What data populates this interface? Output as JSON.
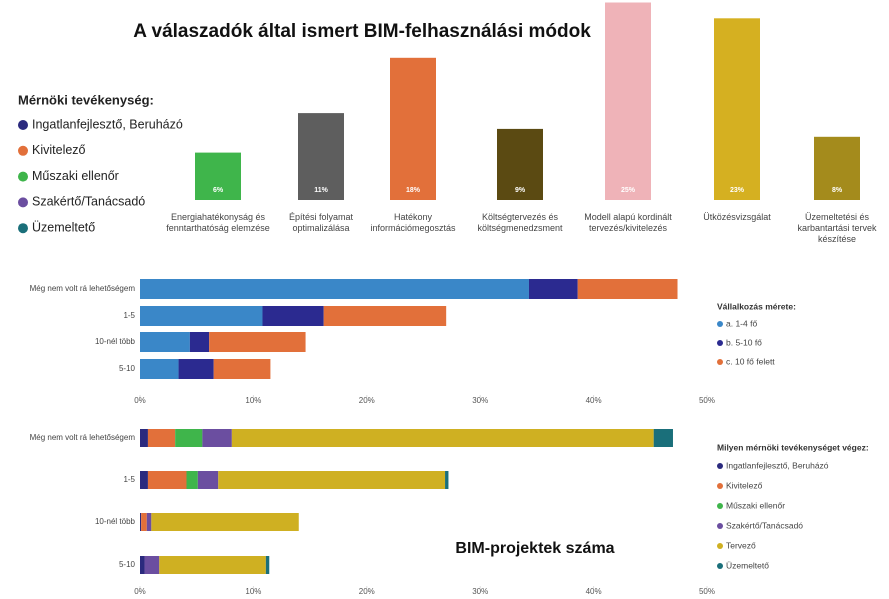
{
  "chart_data": [
    {
      "type": "bar",
      "title": "A válaszadók által ismert BIM-felhasználási módok",
      "categories": [
        "Energiahatékonyság és fenntarthatóság elemzése",
        "Építési folyamat optimalizálása",
        "Hatékony információmegosztás",
        "Költségtervezés és költségmenedzsment",
        "Modell alapú kordinált tervezés/kivitelezés",
        "Ütközésvizsgálat",
        "Üzemeltetési és karbantartási tervek készítése"
      ],
      "values": [
        6,
        11,
        18,
        9,
        25,
        23,
        8
      ],
      "value_labels": [
        "6%",
        "11%",
        "18%",
        "9%",
        "25%",
        "23%",
        "8%"
      ],
      "colors": [
        "#3fb54b",
        "#5e5e5e",
        "#e2703a",
        "#5b4a12",
        "#efb3b8",
        "#d5b021",
        "#a48b1c"
      ],
      "legend": {
        "title": "Mérnöki tevékenység:",
        "items": [
          {
            "name": "Ingatlanfejlesztő, Beruházó",
            "color": "#2b2a7e"
          },
          {
            "name": "Kivitelező",
            "color": "#e2703a"
          },
          {
            "name": "Műszaki ellenőr",
            "color": "#3fb54b"
          },
          {
            "name": "Szakértő/Tanácsadó",
            "color": "#6b4ea0"
          },
          {
            "name": "Üzemeltető",
            "color": "#1a6f7a"
          }
        ]
      }
    },
    {
      "type": "barh",
      "categories": [
        "Még nem volt rá lehetőségem",
        "1-5",
        "10-nél több",
        "5-10"
      ],
      "series": [
        {
          "name": "a. 1-4 fő",
          "color": "#3a87c8",
          "values": [
            34.3,
            10.8,
            4.4,
            3.4
          ]
        },
        {
          "name": "b. 5-10 fő",
          "color": "#2b2a90",
          "values": [
            4.3,
            5.4,
            1.7,
            3.1
          ]
        },
        {
          "name": "c. 10 fő felett",
          "color": "#e2703a",
          "values": [
            8.8,
            10.8,
            8.5,
            5.0
          ]
        }
      ],
      "legend_title": "Vállalkozás mérete:",
      "xlim": [
        0,
        50
      ],
      "xticks": [
        {
          "value": 0,
          "label": "0%"
        },
        {
          "value": 10,
          "label": "10%"
        },
        {
          "value": 20,
          "label": "20%"
        },
        {
          "value": 30,
          "label": "30%"
        },
        {
          "value": 40,
          "label": "40%"
        },
        {
          "value": 50,
          "label": "50%"
        }
      ]
    },
    {
      "type": "barh",
      "categories": [
        "Még nem volt rá lehetőségem",
        "1-5",
        "10-nél több",
        "5-10"
      ],
      "series": [
        {
          "name": "Ingatlanfejlesztő, Beruházó",
          "color": "#2b2a7e",
          "values": [
            0.7,
            0.7,
            0.1,
            0.4
          ]
        },
        {
          "name": "Kivitelező",
          "color": "#e2703a",
          "values": [
            2.4,
            3.4,
            0.5,
            0
          ]
        },
        {
          "name": "Műszaki ellenőr",
          "color": "#3fb54b",
          "values": [
            2.4,
            1.0,
            0,
            0
          ]
        },
        {
          "name": "Szakértő/Tanácsadó",
          "color": "#6b4ea0",
          "values": [
            2.6,
            1.8,
            0.4,
            1.3
          ]
        },
        {
          "name": "Tervező",
          "color": "#cfb022",
          "values": [
            37.2,
            20.0,
            13.0,
            9.4
          ]
        },
        {
          "name": "Üzemeltető",
          "color": "#1a6f7a",
          "values": [
            1.7,
            0.3,
            0,
            0.3
          ]
        }
      ],
      "legend_title": "Milyen mérnöki tevékenységet végez:",
      "annotation": "BIM-projektek száma",
      "xlim": [
        0,
        50
      ],
      "xticks": [
        {
          "value": 0,
          "label": "0%"
        },
        {
          "value": 10,
          "label": "10%"
        },
        {
          "value": 20,
          "label": "20%"
        },
        {
          "value": 30,
          "label": "30%"
        },
        {
          "value": 40,
          "label": "40%"
        },
        {
          "value": 50,
          "label": "50%"
        }
      ]
    }
  ]
}
